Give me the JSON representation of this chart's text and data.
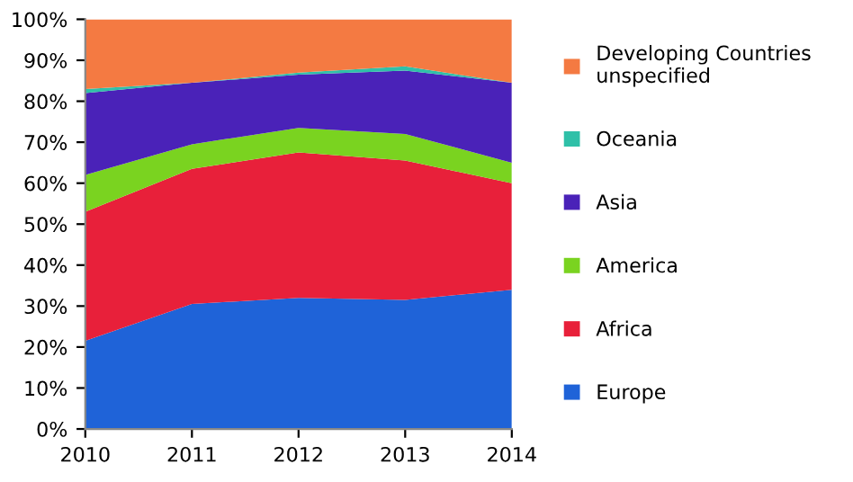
{
  "chart_data": {
    "type": "area",
    "stacked": true,
    "categories": [
      "2010",
      "2011",
      "2012",
      "2013",
      "2014"
    ],
    "series": [
      {
        "name": "Europe",
        "color": "#1f63d8",
        "values": [
          21.5,
          30.5,
          32,
          31.5,
          34
        ]
      },
      {
        "name": "Africa",
        "color": "#e8203a",
        "values": [
          31.5,
          33,
          35.5,
          34,
          26
        ]
      },
      {
        "name": "America",
        "color": "#7ad320",
        "values": [
          9,
          6,
          6,
          6.5,
          5
        ]
      },
      {
        "name": "Asia",
        "color": "#4a22b8",
        "values": [
          20,
          15,
          13,
          15.5,
          19.5
        ]
      },
      {
        "name": "Oceania",
        "color": "#2fc0a8",
        "values": [
          1,
          0,
          0.5,
          1,
          0
        ]
      },
      {
        "name": "Developing Countries unspecified",
        "color": "#f47a42",
        "values": [
          17,
          15.5,
          13,
          11.5,
          15.5
        ]
      }
    ],
    "ylim": [
      0,
      100
    ],
    "yticks": [
      {
        "value": 0,
        "label": "0%"
      },
      {
        "value": 10,
        "label": "10%"
      },
      {
        "value": 20,
        "label": "20%"
      },
      {
        "value": 30,
        "label": "30%"
      },
      {
        "value": 40,
        "label": "40%"
      },
      {
        "value": 50,
        "label": "50%"
      },
      {
        "value": 60,
        "label": "60%"
      },
      {
        "value": 70,
        "label": "70%"
      },
      {
        "value": 80,
        "label": "80%"
      },
      {
        "value": 90,
        "label": "90%"
      },
      {
        "value": 100,
        "label": "100%"
      }
    ],
    "grid": false,
    "legend": "right"
  }
}
